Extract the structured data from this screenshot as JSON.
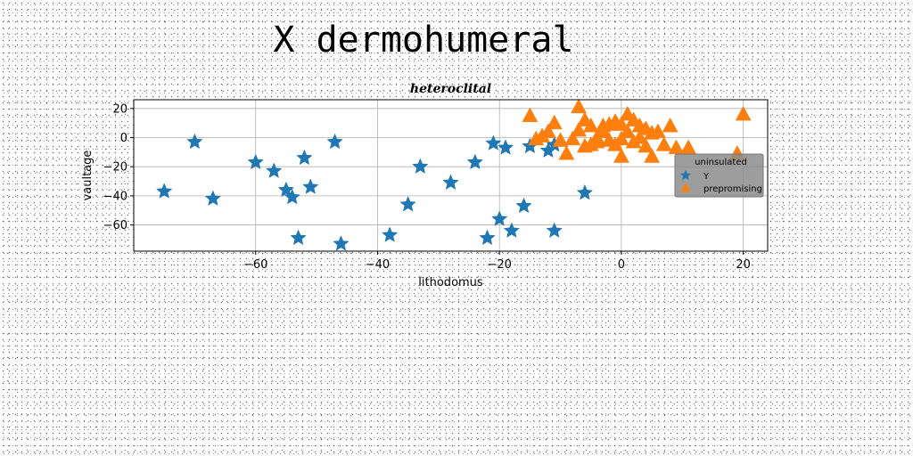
{
  "page_title": "X dermohumeral",
  "chart_data": {
    "type": "scatter",
    "title": "heteroclital",
    "xlabel": "lithodomus",
    "ylabel": "vaultage",
    "xlim": [
      -80,
      24
    ],
    "ylim": [
      -78,
      26
    ],
    "xticks": [
      -60,
      -40,
      -20,
      0,
      20
    ],
    "yticks": [
      20,
      0,
      -20,
      -40,
      -60
    ],
    "grid": true,
    "legend": {
      "title": "uninsulated",
      "placement": "center-right"
    },
    "series": [
      {
        "name": "Y",
        "marker": "star",
        "color": "#1f77b4",
        "points": [
          [
            -75,
            -37
          ],
          [
            -70,
            -3
          ],
          [
            -67,
            -42
          ],
          [
            -60,
            -17
          ],
          [
            -57,
            -23
          ],
          [
            -55,
            -36
          ],
          [
            -54,
            -41
          ],
          [
            -53,
            -69
          ],
          [
            -52,
            -14
          ],
          [
            -51,
            -34
          ],
          [
            -47,
            -3
          ],
          [
            -46,
            -73
          ],
          [
            -38,
            -67
          ],
          [
            -35,
            -46
          ],
          [
            -33,
            -20
          ],
          [
            -28,
            -31
          ],
          [
            -24,
            -17
          ],
          [
            -22,
            -69
          ],
          [
            -21,
            -4
          ],
          [
            -20,
            -56
          ],
          [
            -19,
            -7
          ],
          [
            -18,
            -64
          ],
          [
            -16,
            -47
          ],
          [
            -15,
            -6
          ],
          [
            -12,
            -9
          ],
          [
            -11,
            -5
          ],
          [
            -11,
            -64
          ],
          [
            -6,
            -38
          ]
        ]
      },
      {
        "name": "prepromising",
        "marker": "triangle",
        "color": "#ff7f0e",
        "points": [
          [
            -15,
            15
          ],
          [
            -14,
            -1
          ],
          [
            -13,
            1
          ],
          [
            -12,
            4
          ],
          [
            -11,
            10
          ],
          [
            -10,
            -2
          ],
          [
            -9,
            -11
          ],
          [
            -8,
            -1
          ],
          [
            -7,
            5
          ],
          [
            -7,
            21
          ],
          [
            -6,
            12
          ],
          [
            -6,
            -6
          ],
          [
            -5,
            8
          ],
          [
            -5,
            -5
          ],
          [
            -4,
            -3
          ],
          [
            -4,
            0
          ],
          [
            -3,
            8
          ],
          [
            -3,
            4
          ],
          [
            -2,
            9
          ],
          [
            -2,
            -2
          ],
          [
            -1,
            11
          ],
          [
            -1,
            -5
          ],
          [
            0,
            9
          ],
          [
            0,
            -1
          ],
          [
            0,
            -13
          ],
          [
            1,
            16
          ],
          [
            1,
            4
          ],
          [
            2,
            12
          ],
          [
            2,
            -3
          ],
          [
            3,
            8
          ],
          [
            3,
            0
          ],
          [
            4,
            6
          ],
          [
            4,
            -6
          ],
          [
            5,
            3
          ],
          [
            5,
            -13
          ],
          [
            6,
            4
          ],
          [
            7,
            -5
          ],
          [
            8,
            8
          ],
          [
            9,
            -7
          ],
          [
            11,
            -7
          ],
          [
            19,
            -11
          ],
          [
            20,
            16
          ]
        ]
      }
    ]
  }
}
